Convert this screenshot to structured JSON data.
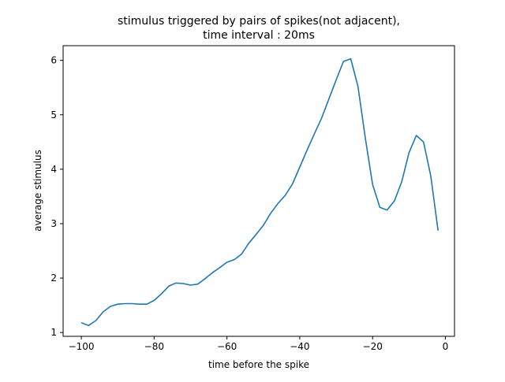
{
  "chart_data": {
    "type": "line",
    "title_lines": [
      "stimulus triggered by pairs of spikes(not adjacent),",
      "time interval : 20ms"
    ],
    "xlabel": "time before the spike",
    "ylabel": "average stimulus",
    "xlim": [
      -105,
      2.5
    ],
    "ylim": [
      0.93,
      6.27
    ],
    "xticks": [
      -100,
      -80,
      -60,
      -40,
      -20,
      0
    ],
    "xtick_labels": [
      "−100",
      "−80",
      "−60",
      "−40",
      "−20",
      "0"
    ],
    "yticks": [
      1,
      2,
      3,
      4,
      5,
      6
    ],
    "ytick_labels": [
      "1",
      "2",
      "3",
      "4",
      "5",
      "6"
    ],
    "grid": false,
    "series": [
      {
        "color": "#1f77b4",
        "x": [
          -100,
          -98,
          -96,
          -94,
          -92,
          -90,
          -88,
          -86,
          -84,
          -82,
          -80,
          -78,
          -76,
          -74,
          -72,
          -70,
          -68,
          -66,
          -64,
          -62,
          -60,
          -58,
          -56,
          -54,
          -52,
          -50,
          -48,
          -46,
          -44,
          -42,
          -40,
          -38,
          -36,
          -34,
          -32,
          -30,
          -28,
          -26,
          -24,
          -22,
          -20,
          -18,
          -16,
          -14,
          -12,
          -10,
          -8,
          -6,
          -4,
          -2
        ],
        "y": [
          1.18,
          1.13,
          1.22,
          1.38,
          1.48,
          1.52,
          1.53,
          1.53,
          1.52,
          1.52,
          1.59,
          1.71,
          1.85,
          1.91,
          1.9,
          1.87,
          1.89,
          1.99,
          2.1,
          2.19,
          2.29,
          2.34,
          2.44,
          2.64,
          2.8,
          2.97,
          3.19,
          3.37,
          3.52,
          3.73,
          4.04,
          4.35,
          4.65,
          4.94,
          5.29,
          5.64,
          5.98,
          6.03,
          5.52,
          4.57,
          3.72,
          3.3,
          3.25,
          3.42,
          3.77,
          4.3,
          4.62,
          4.5,
          3.87,
          2.87
        ]
      }
    ]
  }
}
